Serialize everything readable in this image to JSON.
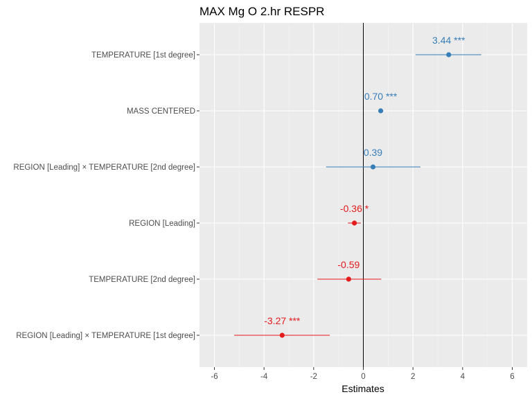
{
  "chart_data": {
    "type": "forest",
    "title": "MAX Mg O 2.hr RESPR",
    "xlabel": "Estimates",
    "ylabel": "",
    "xlim": [
      -6.6,
      6.6
    ],
    "xticks": [
      -6,
      -4,
      -2,
      0,
      2,
      4,
      6
    ],
    "reference_line": 0,
    "grid": true,
    "colors": {
      "positive": "#377eb8",
      "negative": "#e41a1c"
    },
    "terms": [
      {
        "term": "TEMPERATURE [1st degree]",
        "estimate": 3.44,
        "ci": [
          2.1,
          4.75
        ],
        "label": "3.44 ***"
      },
      {
        "term": "MASS CENTERED",
        "estimate": 0.7,
        "ci": [
          0.6,
          0.8
        ],
        "label": "0.70 ***"
      },
      {
        "term": "REGION [Leading] × TEMPERATURE [2nd degree]",
        "estimate": 0.39,
        "ci": [
          -1.5,
          2.3
        ],
        "label": "0.39"
      },
      {
        "term": "REGION [Leading]",
        "estimate": -0.36,
        "ci": [
          -0.62,
          -0.1
        ],
        "label": "-0.36 *"
      },
      {
        "term": "TEMPERATURE [2nd degree]",
        "estimate": -0.59,
        "ci": [
          -1.85,
          0.72
        ],
        "label": "-0.59"
      },
      {
        "term": "REGION [Leading] × TEMPERATURE [1st degree]",
        "estimate": -3.27,
        "ci": [
          -5.2,
          -1.35
        ],
        "label": "-3.27 ***"
      }
    ]
  }
}
